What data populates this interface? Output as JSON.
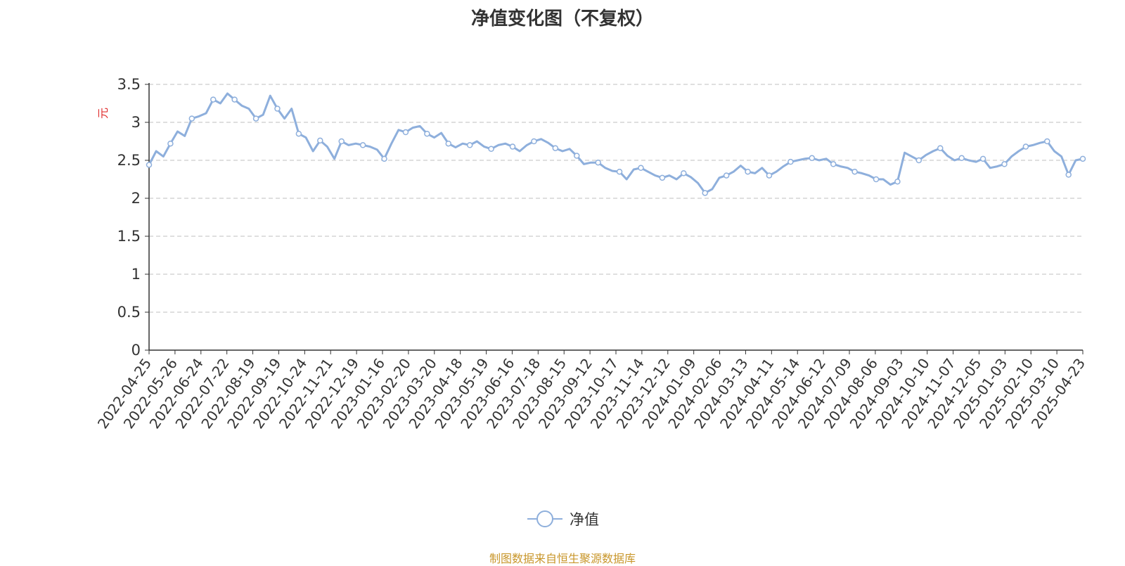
{
  "chart_data": {
    "type": "line",
    "title": "净值变化图（不复权）",
    "ylabel": "元",
    "xlabel": "",
    "ylim": [
      0,
      3.5
    ],
    "y_ticks": [
      "0",
      "0.5",
      "1",
      "1.5",
      "2",
      "2.5",
      "3",
      "3.5"
    ],
    "grid": true,
    "legend_position": "bottom",
    "line_color": "#8eafdc",
    "x_tick_labels": [
      "2022-04-25",
      "2022-05-26",
      "2022-06-24",
      "2022-07-22",
      "2022-08-19",
      "2022-09-19",
      "2022-10-24",
      "2022-11-21",
      "2022-12-19",
      "2023-01-16",
      "2023-02-20",
      "2023-03-20",
      "2023-04-18",
      "2023-05-19",
      "2023-06-16",
      "2023-07-18",
      "2023-08-15",
      "2023-09-12",
      "2023-10-17",
      "2023-11-14",
      "2023-12-12",
      "2024-01-09",
      "2024-02-06",
      "2024-03-13",
      "2024-04-11",
      "2024-05-14",
      "2024-06-12",
      "2024-07-09",
      "2024-08-06",
      "2024-09-03",
      "2024-10-10",
      "2024-11-07",
      "2024-12-05",
      "2025-01-03",
      "2025-02-10",
      "2025-03-10",
      "2025-04-23"
    ],
    "series": [
      {
        "name": "净值",
        "values": [
          2.44,
          2.62,
          2.55,
          2.72,
          2.88,
          2.82,
          3.05,
          3.08,
          3.12,
          3.3,
          3.25,
          3.38,
          3.3,
          3.22,
          3.18,
          3.05,
          3.1,
          3.35,
          3.18,
          3.05,
          3.18,
          2.85,
          2.8,
          2.62,
          2.76,
          2.68,
          2.52,
          2.75,
          2.7,
          2.72,
          2.7,
          2.68,
          2.64,
          2.52,
          2.72,
          2.9,
          2.87,
          2.93,
          2.95,
          2.85,
          2.8,
          2.86,
          2.72,
          2.67,
          2.72,
          2.7,
          2.75,
          2.68,
          2.65,
          2.7,
          2.72,
          2.68,
          2.62,
          2.7,
          2.75,
          2.78,
          2.73,
          2.66,
          2.62,
          2.65,
          2.56,
          2.45,
          2.47,
          2.47,
          2.4,
          2.36,
          2.35,
          2.25,
          2.38,
          2.4,
          2.35,
          2.3,
          2.27,
          2.3,
          2.25,
          2.33,
          2.28,
          2.2,
          2.07,
          2.12,
          2.27,
          2.3,
          2.35,
          2.43,
          2.35,
          2.33,
          2.4,
          2.3,
          2.35,
          2.42,
          2.48,
          2.5,
          2.52,
          2.53,
          2.5,
          2.52,
          2.45,
          2.42,
          2.4,
          2.35,
          2.33,
          2.3,
          2.25,
          2.25,
          2.18,
          2.22,
          2.6,
          2.55,
          2.5,
          2.57,
          2.62,
          2.66,
          2.56,
          2.5,
          2.53,
          2.5,
          2.48,
          2.52,
          2.4,
          2.42,
          2.45,
          2.55,
          2.62,
          2.68,
          2.7,
          2.73,
          2.75,
          2.62,
          2.55,
          2.31,
          2.5,
          2.52
        ]
      }
    ]
  },
  "legend": {
    "label": "净值"
  },
  "source": "制图数据来自恒生聚源数据库"
}
